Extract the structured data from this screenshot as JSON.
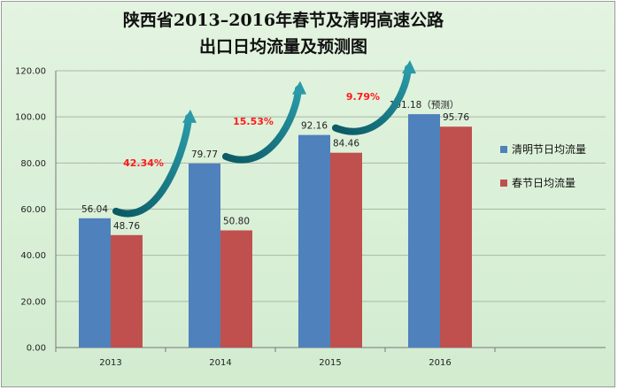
{
  "chart_data": {
    "type": "bar",
    "title_lines": [
      "陕西省2013–2016年春节及清明高速公路",
      "出口日均流量及预测图"
    ],
    "categories": [
      "2013",
      "2014",
      "2015",
      "2016"
    ],
    "series": [
      {
        "name": "清明节日均流量",
        "values": [
          56.04,
          79.77,
          92.16,
          101.18
        ],
        "labels": [
          "56.04",
          "79.77",
          "92.16",
          "101.18（预测）"
        ],
        "color": "#4f81bd"
      },
      {
        "name": "春节日均流量",
        "values": [
          48.76,
          50.8,
          84.46,
          95.76
        ],
        "labels": [
          "48.76",
          "50.80",
          "84.46",
          "95.76"
        ],
        "color": "#c0504d"
      }
    ],
    "ylim": [
      0,
      120
    ],
    "yticks": [
      "0.00",
      "20.00",
      "40.00",
      "60.00",
      "80.00",
      "100.00",
      "120.00"
    ],
    "growth_annotations": [
      "42.34%",
      "15.53%",
      "9.79%"
    ],
    "grid": true,
    "legend_position": "right"
  }
}
